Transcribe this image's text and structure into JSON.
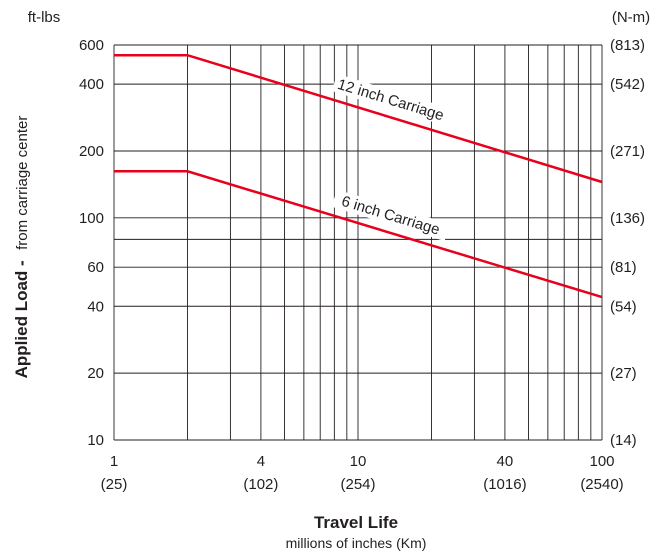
{
  "chart_data": {
    "type": "line",
    "x_scale": "log",
    "y_scale": "log",
    "xlim": [
      1,
      100
    ],
    "ylim": [
      10,
      600
    ],
    "grid": true,
    "y_unit_left": "ft-lbs",
    "y_unit_right": "(N-m)",
    "ylabel_bold": "Applied Load -",
    "ylabel_rest": "from carriage center",
    "xlabel_title": "Travel Life",
    "xlabel_sub": "millions of inches  (Km)",
    "x_ticks": [
      {
        "value": 1,
        "label": "1",
        "sub": "(25)"
      },
      {
        "value": 4,
        "label": "4",
        "sub": "(102)"
      },
      {
        "value": 10,
        "label": "10",
        "sub": "(254)"
      },
      {
        "value": 40,
        "label": "40",
        "sub": "(1016)"
      },
      {
        "value": 100,
        "label": "100",
        "sub": "(2540)"
      }
    ],
    "x_grid": [
      1,
      2,
      3,
      4,
      5,
      6,
      7,
      8,
      9,
      10,
      20,
      30,
      40,
      50,
      60,
      70,
      80,
      90,
      100
    ],
    "y_ticks": [
      {
        "value": 10,
        "label": "10",
        "right": "(14)"
      },
      {
        "value": 20,
        "label": "20",
        "right": "(27)"
      },
      {
        "value": 40,
        "label": "40",
        "right": "(54)"
      },
      {
        "value": 60,
        "label": "60",
        "right": "(81)"
      },
      {
        "value": 100,
        "label": "100",
        "right": "(136)"
      },
      {
        "value": 200,
        "label": "200",
        "right": "(271)"
      },
      {
        "value": 400,
        "label": "400",
        "right": "(542)"
      },
      {
        "value": 600,
        "label": "600",
        "right": "(813)"
      }
    ],
    "y_grid": [
      10,
      20,
      40,
      60,
      80,
      100,
      200,
      400,
      600
    ],
    "series_color": "#e8001c",
    "series": [
      {
        "name": "12 inch Carriage",
        "x": [
          1,
          2,
          100
        ],
        "y": [
          540,
          540,
          145
        ]
      },
      {
        "name": "6 inch Carriage",
        "x": [
          1,
          2,
          100
        ],
        "y": [
          162,
          162,
          44
        ]
      }
    ],
    "annotations": [
      {
        "text": "12 inch Carriage",
        "series": 0,
        "at_x": 13
      },
      {
        "text": "6 inch Carriage",
        "series": 1,
        "at_x": 13
      }
    ]
  }
}
